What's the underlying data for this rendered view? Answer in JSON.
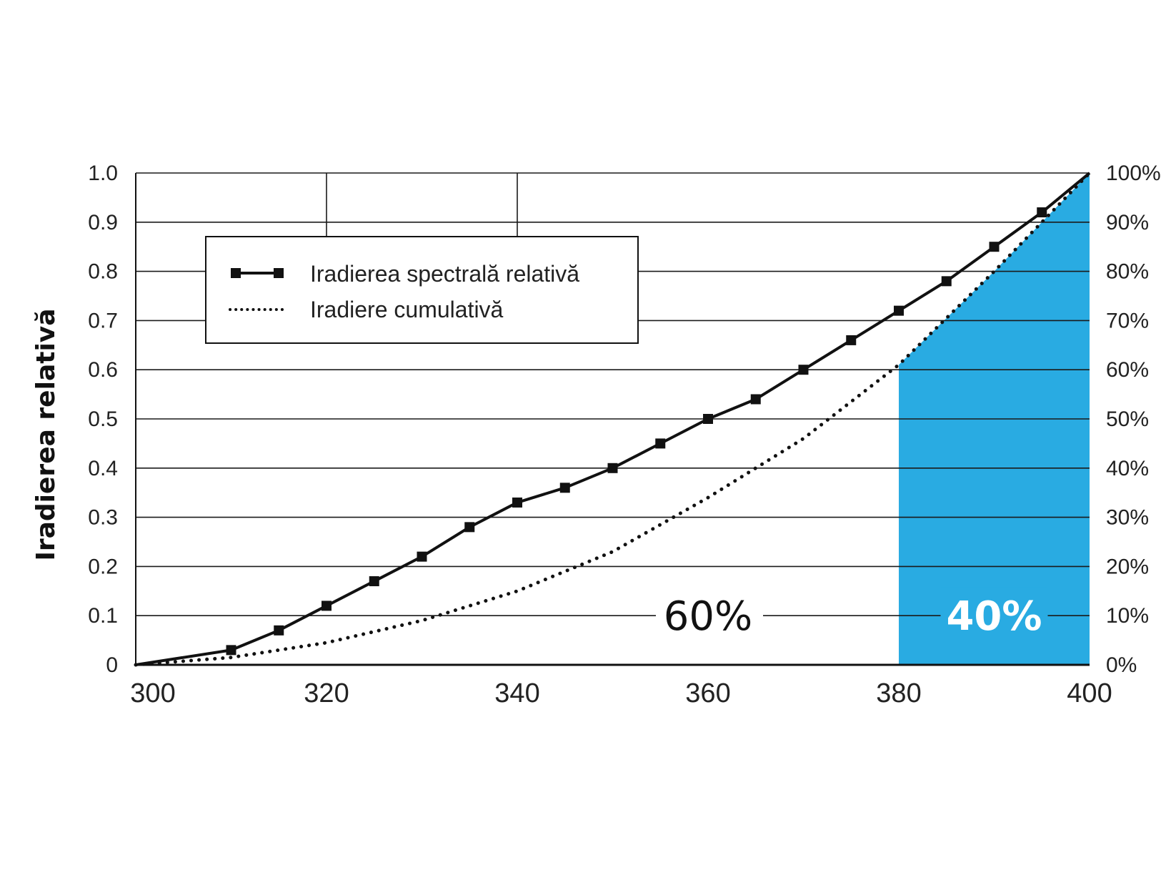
{
  "chart_data": {
    "type": "line",
    "ylabel": "Iradierea relativă",
    "x_ticks": [
      "300",
      "320",
      "340",
      "360",
      "380",
      "400"
    ],
    "y_ticks": [
      "0",
      "0.1",
      "0.2",
      "0.3",
      "0.4",
      "0.5",
      "0.6",
      "0.7",
      "0.8",
      "0.9",
      "1.0"
    ],
    "y2_ticks": [
      "0%",
      "10%",
      "20%",
      "30%",
      "40%",
      "50%",
      "60%",
      "70%",
      "80%",
      "90%",
      "100%"
    ],
    "xlim": [
      300,
      400
    ],
    "ylim": [
      0,
      1
    ],
    "y2lim": [
      0,
      100
    ],
    "grid": "horizontal",
    "legend": {
      "placement": "top-left",
      "entries": [
        "Iradierea spectrală relativă",
        "Iradiere cumulativă"
      ]
    },
    "series": [
      {
        "name": "Iradierea spectrală relativă",
        "style": "solid-square-markers",
        "x": [
          310,
          315,
          320,
          325,
          330,
          335,
          340,
          345,
          350,
          355,
          360,
          365,
          370,
          375,
          380,
          385,
          390,
          395,
          400
        ],
        "y": [
          0.03,
          0.07,
          0.12,
          0.17,
          0.22,
          0.28,
          0.33,
          0.36,
          0.4,
          0.45,
          0.5,
          0.54,
          0.6,
          0.66,
          0.72,
          0.78,
          0.85,
          0.92,
          1.0
        ]
      },
      {
        "name": "Iradiere cumulativă",
        "style": "dotted",
        "x": [
          300,
          310,
          320,
          330,
          340,
          350,
          360,
          370,
          380,
          390,
          400
        ],
        "y": [
          0.0,
          0.015,
          0.045,
          0.09,
          0.15,
          0.23,
          0.34,
          0.46,
          0.61,
          0.8,
          1.0
        ]
      }
    ],
    "shaded_region": {
      "x_start": 380,
      "x_end": 400,
      "color": "#29ABE2"
    },
    "annotations": [
      {
        "text": "60%",
        "x": 360,
        "y": 0.1
      },
      {
        "text": "40%",
        "x": 390,
        "y": 0.1
      }
    ]
  }
}
